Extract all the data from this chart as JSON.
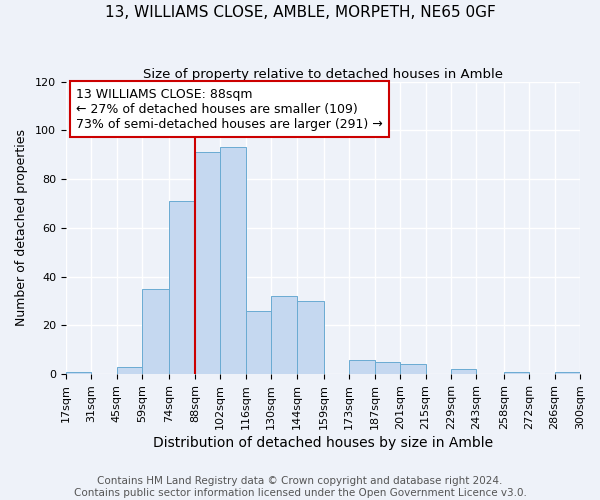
{
  "title": "13, WILLIAMS CLOSE, AMBLE, MORPETH, NE65 0GF",
  "subtitle": "Size of property relative to detached houses in Amble",
  "xlabel": "Distribution of detached houses by size in Amble",
  "ylabel": "Number of detached properties",
  "bin_edges": [
    17,
    31,
    45,
    59,
    74,
    88,
    102,
    116,
    130,
    144,
    159,
    173,
    187,
    201,
    215,
    229,
    243,
    258,
    272,
    286,
    300
  ],
  "bin_labels": [
    "17sqm",
    "31sqm",
    "45sqm",
    "59sqm",
    "74sqm",
    "88sqm",
    "102sqm",
    "116sqm",
    "130sqm",
    "144sqm",
    "159sqm",
    "173sqm",
    "187sqm",
    "201sqm",
    "215sqm",
    "229sqm",
    "243sqm",
    "258sqm",
    "272sqm",
    "286sqm",
    "300sqm"
  ],
  "counts": [
    1,
    0,
    3,
    35,
    71,
    91,
    93,
    26,
    32,
    30,
    0,
    6,
    5,
    4,
    0,
    2,
    0,
    1,
    0,
    1
  ],
  "bar_color": "#c5d8f0",
  "bar_edge_color": "#6aabd2",
  "property_value": 88,
  "vline_color": "#cc0000",
  "annotation_line1": "13 WILLIAMS CLOSE: 88sqm",
  "annotation_line2": "← 27% of detached houses are smaller (109)",
  "annotation_line3": "73% of semi-detached houses are larger (291) →",
  "annotation_box_color": "#ffffff",
  "annotation_box_edge_color": "#cc0000",
  "ylim": [
    0,
    120
  ],
  "yticks": [
    0,
    20,
    40,
    60,
    80,
    100,
    120
  ],
  "footer1": "Contains HM Land Registry data © Crown copyright and database right 2024.",
  "footer2": "Contains public sector information licensed under the Open Government Licence v3.0.",
  "background_color": "#eef2f9",
  "grid_color": "#ffffff",
  "title_fontsize": 11,
  "subtitle_fontsize": 9.5,
  "xlabel_fontsize": 10,
  "ylabel_fontsize": 9,
  "tick_fontsize": 8,
  "annotation_fontsize": 9,
  "footer_fontsize": 7.5
}
